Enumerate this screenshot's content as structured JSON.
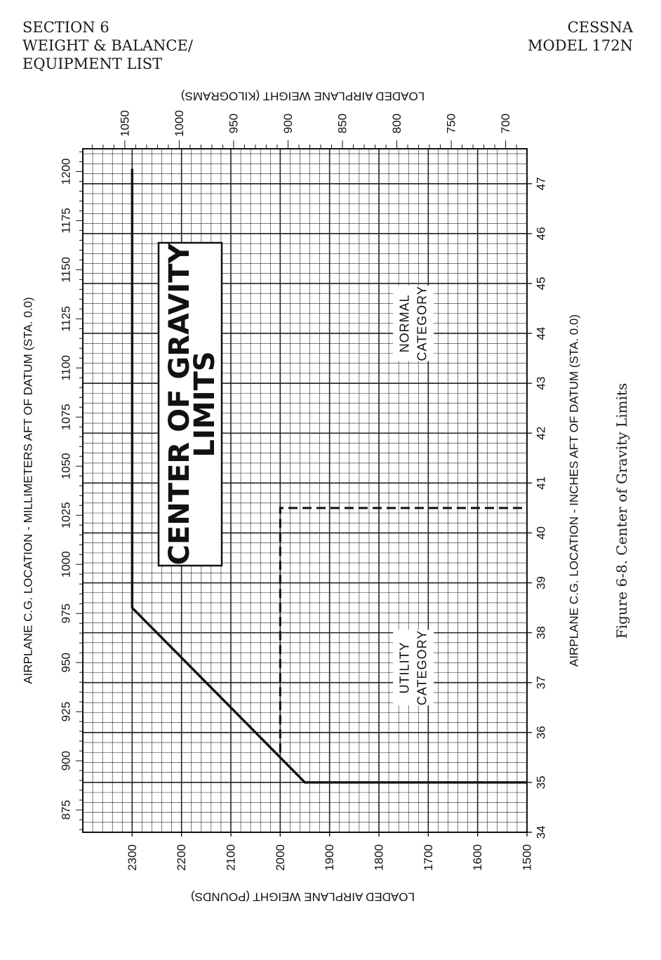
{
  "header": {
    "left_lines": [
      "SECTION 6",
      "WEIGHT & BALANCE/",
      "EQUIPMENT LIST"
    ],
    "right_lines": [
      "CESSNA",
      "MODEL 172N"
    ]
  },
  "caption": "Figure 6-8.    Center of Gravity Limits",
  "chart_data": {
    "type": "line",
    "title_lines": [
      "CENTER OF GRAVITY",
      "LIMITS"
    ],
    "xlabel": "AIRPLANE C.G. LOCATION - INCHES AFT OF DATUM (STA. 0.0)",
    "x2label": "AIRPLANE C.G. LOCATION - MILLIMETERS AFT OF DATUM (STA. 0.0)",
    "ylabel": "LOADED AIRPLANE WEIGHT (POUNDS)",
    "y2label": "LOADED AIRPLANE WEIGHT (KILOGRAMS)",
    "xlim": [
      34,
      47.7
    ],
    "ylim": [
      1500,
      2400
    ],
    "x_ticks": [
      34,
      35,
      36,
      37,
      38,
      39,
      40,
      41,
      42,
      43,
      44,
      45,
      46,
      47
    ],
    "y_ticks": [
      1500,
      1600,
      1700,
      1800,
      1900,
      2000,
      2100,
      2200,
      2300
    ],
    "x2_ticks": [
      875,
      900,
      925,
      950,
      975,
      1000,
      1025,
      1050,
      1075,
      1100,
      1125,
      1150,
      1175,
      1200
    ],
    "y2_ticks": [
      700,
      750,
      800,
      850,
      900,
      950,
      1000,
      1050
    ],
    "grid": true,
    "series": [
      {
        "name": "NORMAL CATEGORY",
        "style": "solid",
        "x": [
          47.3,
          38.5,
          35.0,
          35.0
        ],
        "y": [
          2300,
          2300,
          1950,
          1500
        ]
      },
      {
        "name": "UTILITY CATEGORY",
        "style": "dashed",
        "x": [
          35.6,
          40.5,
          40.5
        ],
        "y": [
          2000,
          2000,
          1500
        ]
      }
    ],
    "region_labels": [
      {
        "lines": [
          "NORMAL",
          "CATEGORY"
        ],
        "x": 44.2,
        "y": 1730
      },
      {
        "lines": [
          "UTILITY",
          "CATEGORY"
        ],
        "x": 37.3,
        "y": 1730
      }
    ]
  }
}
